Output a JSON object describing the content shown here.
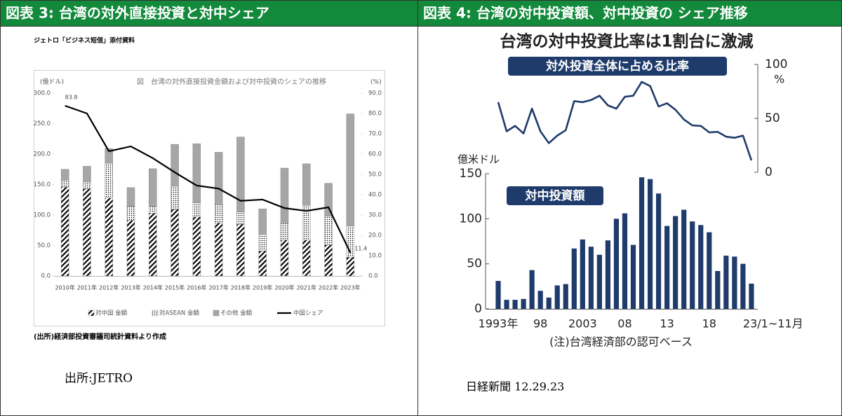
{
  "panels": [
    {
      "header": "図表 3: 台湾の対外直接投資と対中シェア",
      "source": "出所:JETRO"
    },
    {
      "header": "図表 4: 台湾の対中投資額、対中投資の シェア推移",
      "source": "日経新聞 12.29.23"
    }
  ],
  "chart_data": [
    {
      "type": "bar",
      "stacked": true,
      "note_top": "ジェトロ「ビジネス短信」添付資料",
      "title": "図　台湾の対外直接投資金額および対中投資のシェアの推移",
      "ylabel": "(億ドル)",
      "y2label": "(%)",
      "footnote": "(出所)経済部投資審議司統計資料より作成",
      "legend": "bottom",
      "categories": [
        "2010年",
        "2011年",
        "2012年",
        "2013年",
        "2014年",
        "2015年",
        "2016年",
        "2017年",
        "2018年",
        "2019年",
        "2020年",
        "2021年",
        "2022年",
        "2023年"
      ],
      "series": [
        {
          "name": "対中国 金額",
          "color": "#000000",
          "pattern": "hatch",
          "values": [
            146,
            143,
            128,
            91,
            103,
            109,
            97,
            87,
            85,
            41,
            59,
            59,
            51,
            31
          ]
        },
        {
          "name": "対ASEAN 金額",
          "color": "#000000",
          "pattern": "dots",
          "values": [
            11,
            11,
            57,
            23,
            11,
            38,
            23,
            31,
            20,
            27,
            28,
            57,
            47,
            51
          ]
        },
        {
          "name": "その他 金額",
          "color": "#a6a6a6",
          "values": [
            18,
            26,
            24,
            31,
            62,
            69,
            97,
            85,
            123,
            42,
            90,
            68,
            54,
            184
          ]
        },
        {
          "name": "中国シェア",
          "type": "line",
          "axis": "y2",
          "color": "#000000",
          "values": [
            83.8,
            80,
            61.4,
            63.8,
            58,
            51,
            44.5,
            43,
            37,
            37.6,
            33.4,
            32,
            33.8,
            11.4
          ],
          "value_labels": [
            "83.8",
            null,
            null,
            null,
            null,
            null,
            null,
            null,
            null,
            null,
            null,
            null,
            null,
            "11.4"
          ]
        }
      ],
      "ylim": [
        0,
        300
      ],
      "yticks": [
        {
          "value": 0,
          "label": "0.0"
        },
        {
          "value": 50,
          "label": "50.0"
        },
        {
          "value": 100,
          "label": "100.0"
        },
        {
          "value": 150,
          "label": "150.0"
        },
        {
          "value": 200,
          "label": "200.0"
        },
        {
          "value": 250,
          "label": "250.0"
        },
        {
          "value": 300,
          "label": "300.0"
        }
      ],
      "y2lim": [
        0,
        90
      ],
      "y2ticks": [
        {
          "value": 0,
          "label": "0.0"
        },
        {
          "value": 10,
          "label": "10.0"
        },
        {
          "value": 20,
          "label": "20.0"
        },
        {
          "value": 30,
          "label": "30.0"
        },
        {
          "value": 40,
          "label": "40.0"
        },
        {
          "value": 50,
          "label": "50.0"
        },
        {
          "value": 60,
          "label": "60.0"
        },
        {
          "value": 70,
          "label": "70.0"
        },
        {
          "value": 80,
          "label": "80.0"
        },
        {
          "value": 90,
          "label": "90.0"
        }
      ]
    },
    {
      "type": "bar",
      "title": "台湾の対中投資比率は1割台に激減",
      "ylabel": "億米ドル",
      "y2label": "%",
      "note": "(注)台湾経済部の認可ベース",
      "categories": [
        "1993年",
        null,
        null,
        null,
        null,
        "98",
        null,
        null,
        null,
        null,
        "2003",
        null,
        null,
        null,
        null,
        "08",
        null,
        null,
        null,
        null,
        "13",
        null,
        null,
        null,
        null,
        "18",
        null,
        null,
        null,
        null,
        "23/1~11月"
      ],
      "series": [
        {
          "name": "対中投資額",
          "color": "#1f3b6b",
          "values": [
            31,
            10,
            10,
            11,
            43,
            20,
            12.5,
            26,
            27.5,
            67,
            77,
            69,
            60,
            76,
            100,
            106,
            71,
            146,
            144,
            128,
            92,
            103,
            110,
            97,
            93,
            85,
            42,
            59,
            58,
            50,
            28
          ]
        },
        {
          "name": "対外投資全体に占める比率",
          "type": "line",
          "axis": "y2",
          "color": "#1f3b6b",
          "values": [
            65,
            38,
            43,
            36,
            59,
            38,
            27,
            34,
            39,
            66,
            65,
            67,
            71,
            62,
            59,
            70,
            71,
            83.8,
            80,
            61,
            64,
            58,
            49,
            43.5,
            43,
            37,
            37.5,
            33,
            32,
            34,
            11
          ]
        }
      ],
      "ylim": [
        0,
        150
      ],
      "yticks": [
        0,
        50,
        100,
        150
      ],
      "y2lim": [
        0,
        100
      ],
      "y2ticks": [
        0,
        50,
        100
      ]
    }
  ]
}
